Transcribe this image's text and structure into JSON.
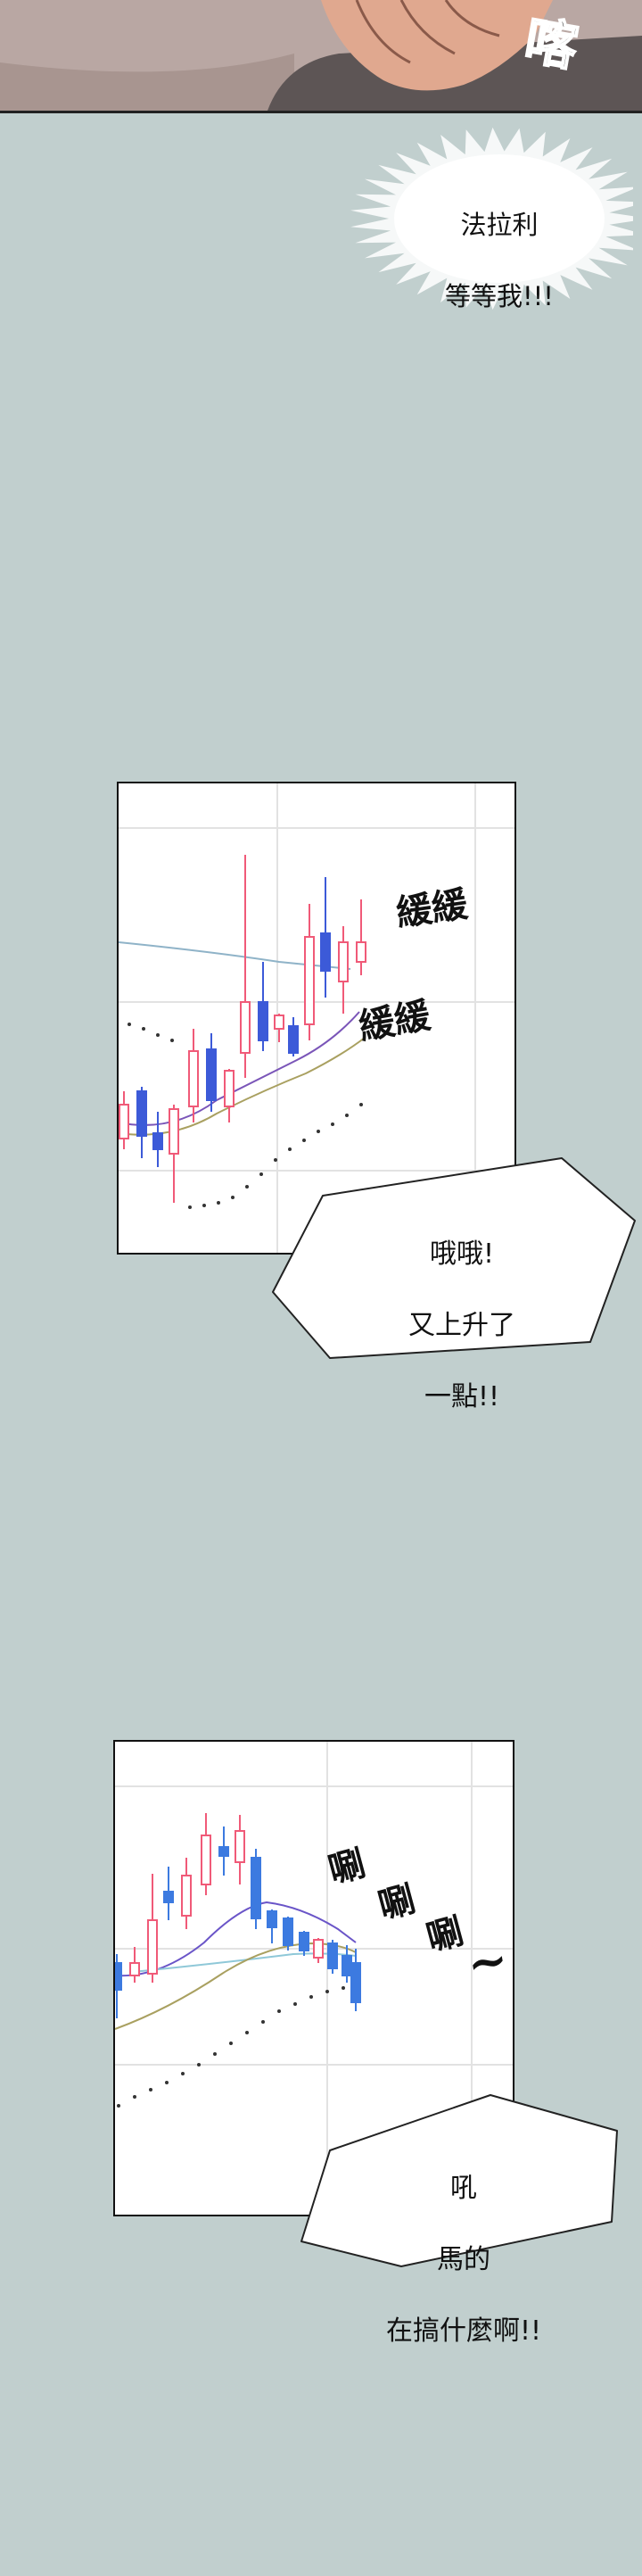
{
  "panel1": {
    "sfx": "喀"
  },
  "panel2": {
    "shout_line1": "法拉利",
    "shout_line2": "等等我!!!"
  },
  "panel3": {
    "sfx_top": "緩緩",
    "sfx_mid": "緩緩",
    "speech_line1": "哦哦!",
    "speech_line2": "又上升了",
    "speech_line3": "一點!!",
    "colors": {
      "up": "#f05a78",
      "down": "#3c5ad8"
    }
  },
  "panel4": {
    "sfx_1": "唰",
    "sfx_2": "唰",
    "sfx_3": "唰",
    "sfx_tilde": "~",
    "speech_line1": "吼",
    "speech_line2": "馬的",
    "speech_line3": "在搞什麼啊!!",
    "colors": {
      "up": "#f05a78",
      "down": "#3c7ae0"
    }
  }
}
